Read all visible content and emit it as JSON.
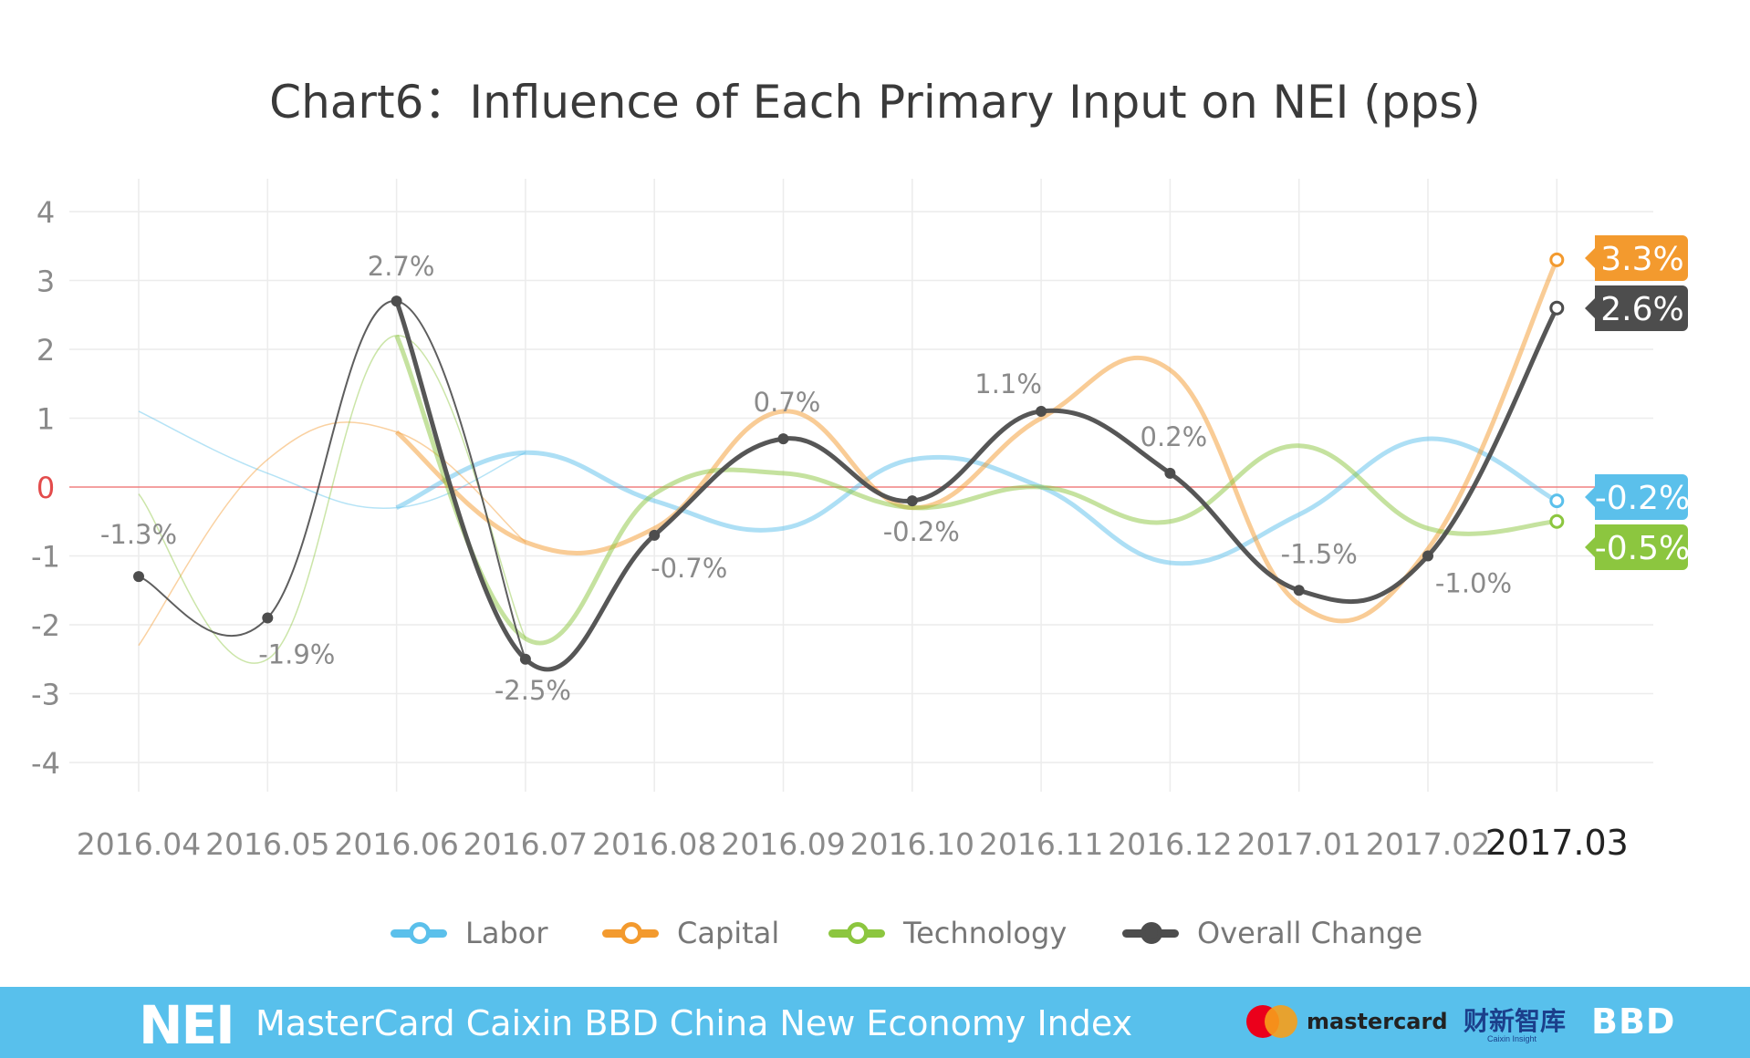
{
  "chart_data": {
    "type": "line",
    "title": "Chart6：Influence of Each Primary Input on NEI (pps)",
    "categories": [
      "2016.04",
      "2016.05",
      "2016.06",
      "2016.07",
      "2016.08",
      "2016.09",
      "2016.10",
      "2016.11",
      "2016.12",
      "2017.01",
      "2017.02",
      "2017.03"
    ],
    "highlighted_category": "2017.03",
    "ylim": [
      -4,
      4
    ],
    "yticks": [
      4,
      3,
      2,
      1,
      0,
      -1,
      -2,
      -3,
      -4
    ],
    "grid": true,
    "zero_line_color": "#f08080",
    "series": [
      {
        "name": "Labor",
        "color": "#5bc0eb",
        "values": [
          1.1,
          0.2,
          -0.3,
          0.5,
          -0.2,
          -0.6,
          0.4,
          0.0,
          -1.1,
          -0.4,
          0.7,
          -0.2
        ]
      },
      {
        "name": "Capital",
        "color": "#f39a2e",
        "values": [
          -2.3,
          0.4,
          0.8,
          -0.8,
          -0.6,
          1.1,
          -0.3,
          1.0,
          1.7,
          -1.7,
          -0.9,
          3.3
        ]
      },
      {
        "name": "Technology",
        "color": "#8cc63f",
        "values": [
          -0.1,
          -2.5,
          2.2,
          -2.2,
          -0.1,
          0.2,
          -0.3,
          0.0,
          -0.5,
          0.6,
          -0.6,
          -0.5
        ]
      },
      {
        "name": "Overall Change",
        "color": "#4d4d4d",
        "values": [
          -1.3,
          -1.9,
          2.7,
          -2.5,
          -0.7,
          0.7,
          -0.2,
          1.1,
          0.2,
          -1.5,
          -1.0,
          2.6
        ]
      }
    ],
    "data_labels": [
      "-1.3%",
      "-1.9%",
      "2.7%",
      "-2.5%",
      "-0.7%",
      "0.7%",
      "-0.2%",
      "1.1%",
      "0.2%",
      "-1.5%",
      "-1.0%",
      ""
    ],
    "end_labels": [
      {
        "series": "Capital",
        "text": "3.3%",
        "color": "#f39a2e"
      },
      {
        "series": "Overall Change",
        "text": "2.6%",
        "color": "#4d4d4d"
      },
      {
        "series": "Labor",
        "text": "-0.2%",
        "color": "#5bc0eb"
      },
      {
        "series": "Technology",
        "text": "-0.5%",
        "color": "#8cc63f"
      }
    ],
    "legend_position": "bottom"
  },
  "legend": {
    "labor": "Labor",
    "capital": "Capital",
    "technology": "Technology",
    "overall": "Overall Change"
  },
  "footer": {
    "logo": "NEI",
    "title": "MasterCard Caixin BBD China New Economy Index",
    "mastercard": "mastercard",
    "caixin": "财新智库",
    "caixin_sub": "Caixin Insight",
    "bbd": "BBD",
    "accent_color": "#58c0ec"
  }
}
